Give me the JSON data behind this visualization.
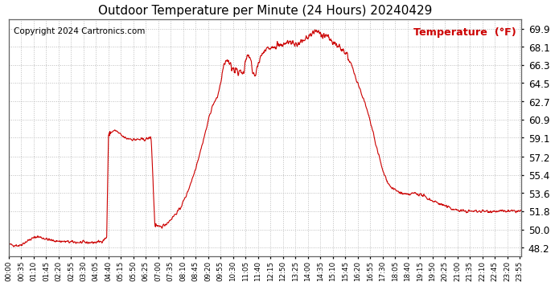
{
  "title": "Outdoor Temperature per Minute (24 Hours) 20240429",
  "copyright_text": "Copyright 2024 Cartronics.com",
  "legend_label": "Temperature  (°F)",
  "line_color": "#cc0000",
  "background_color": "#ffffff",
  "grid_color": "#aaaaaa",
  "yticks": [
    48.2,
    50.0,
    51.8,
    53.6,
    55.4,
    57.2,
    59.1,
    60.9,
    62.7,
    64.5,
    66.3,
    68.1,
    69.9
  ],
  "ymin": 47.3,
  "ymax": 70.8,
  "total_minutes": 1440,
  "xtick_interval": 35,
  "xtick_labels": [
    "00:00",
    "00:35",
    "01:10",
    "01:45",
    "02:20",
    "02:55",
    "03:30",
    "04:05",
    "04:40",
    "05:15",
    "05:50",
    "06:25",
    "07:00",
    "07:35",
    "08:10",
    "08:45",
    "09:20",
    "09:55",
    "10:30",
    "11:05",
    "11:40",
    "12:15",
    "12:50",
    "13:25",
    "14:00",
    "14:35",
    "15:10",
    "15:45",
    "16:20",
    "16:55",
    "17:30",
    "18:05",
    "18:40",
    "19:15",
    "19:50",
    "20:25",
    "21:00",
    "21:35",
    "22:10",
    "22:45",
    "23:20",
    "23:55"
  ],
  "key_points": [
    [
      0,
      48.5
    ],
    [
      30,
      48.4
    ],
    [
      60,
      49.0
    ],
    [
      80,
      49.3
    ],
    [
      100,
      49.1
    ],
    [
      120,
      48.9
    ],
    [
      150,
      48.8
    ],
    [
      200,
      48.7
    ],
    [
      240,
      48.7
    ],
    [
      260,
      48.8
    ],
    [
      275,
      49.2
    ],
    [
      280,
      59.3
    ],
    [
      290,
      59.7
    ],
    [
      300,
      59.8
    ],
    [
      310,
      59.5
    ],
    [
      320,
      59.2
    ],
    [
      330,
      59.0
    ],
    [
      340,
      59.0
    ],
    [
      350,
      58.9
    ],
    [
      360,
      58.9
    ],
    [
      370,
      58.9
    ],
    [
      380,
      58.9
    ],
    [
      390,
      59.0
    ],
    [
      400,
      59.1
    ],
    [
      410,
      50.5
    ],
    [
      420,
      50.2
    ],
    [
      430,
      50.3
    ],
    [
      440,
      50.5
    ],
    [
      450,
      50.8
    ],
    [
      460,
      51.2
    ],
    [
      480,
      52.0
    ],
    [
      500,
      53.5
    ],
    [
      520,
      55.5
    ],
    [
      540,
      58.0
    ],
    [
      555,
      60.0
    ],
    [
      565,
      61.5
    ],
    [
      575,
      62.5
    ],
    [
      585,
      63.0
    ],
    [
      595,
      64.5
    ],
    [
      605,
      66.5
    ],
    [
      615,
      66.8
    ],
    [
      620,
      66.3
    ],
    [
      630,
      66.0
    ],
    [
      640,
      65.8
    ],
    [
      650,
      65.5
    ],
    [
      660,
      65.5
    ],
    [
      665,
      67.0
    ],
    [
      670,
      67.3
    ],
    [
      675,
      67.0
    ],
    [
      680,
      66.8
    ],
    [
      685,
      65.5
    ],
    [
      690,
      65.0
    ],
    [
      695,
      65.5
    ],
    [
      700,
      66.5
    ],
    [
      710,
      67.2
    ],
    [
      720,
      67.8
    ],
    [
      730,
      68.0
    ],
    [
      740,
      68.2
    ],
    [
      750,
      68.3
    ],
    [
      760,
      68.1
    ],
    [
      770,
      68.3
    ],
    [
      780,
      68.5
    ],
    [
      790,
      68.6
    ],
    [
      800,
      68.5
    ],
    [
      810,
      68.3
    ],
    [
      820,
      68.5
    ],
    [
      830,
      68.8
    ],
    [
      840,
      69.0
    ],
    [
      850,
      69.4
    ],
    [
      860,
      69.6
    ],
    [
      870,
      69.5
    ],
    [
      880,
      69.3
    ],
    [
      890,
      69.1
    ],
    [
      900,
      68.9
    ],
    [
      910,
      68.5
    ],
    [
      920,
      68.3
    ],
    [
      930,
      68.1
    ],
    [
      940,
      67.8
    ],
    [
      950,
      67.2
    ],
    [
      960,
      66.5
    ],
    [
      970,
      65.5
    ],
    [
      980,
      64.5
    ],
    [
      990,
      63.5
    ],
    [
      1000,
      62.5
    ],
    [
      1010,
      61.3
    ],
    [
      1020,
      60.0
    ],
    [
      1030,
      58.5
    ],
    [
      1040,
      57.2
    ],
    [
      1050,
      55.8
    ],
    [
      1060,
      55.0
    ],
    [
      1070,
      54.3
    ],
    [
      1080,
      54.0
    ],
    [
      1090,
      53.8
    ],
    [
      1100,
      53.6
    ],
    [
      1110,
      53.5
    ],
    [
      1120,
      53.4
    ],
    [
      1130,
      53.5
    ],
    [
      1140,
      53.6
    ],
    [
      1150,
      53.5
    ],
    [
      1160,
      53.4
    ],
    [
      1170,
      53.2
    ],
    [
      1180,
      53.0
    ],
    [
      1200,
      52.7
    ],
    [
      1220,
      52.4
    ],
    [
      1240,
      52.1
    ],
    [
      1260,
      51.9
    ],
    [
      1280,
      51.8
    ],
    [
      1300,
      51.8
    ],
    [
      1320,
      51.8
    ],
    [
      1340,
      51.8
    ],
    [
      1360,
      51.8
    ],
    [
      1380,
      51.8
    ],
    [
      1400,
      51.8
    ],
    [
      1420,
      51.8
    ],
    [
      1439,
      51.8
    ]
  ]
}
